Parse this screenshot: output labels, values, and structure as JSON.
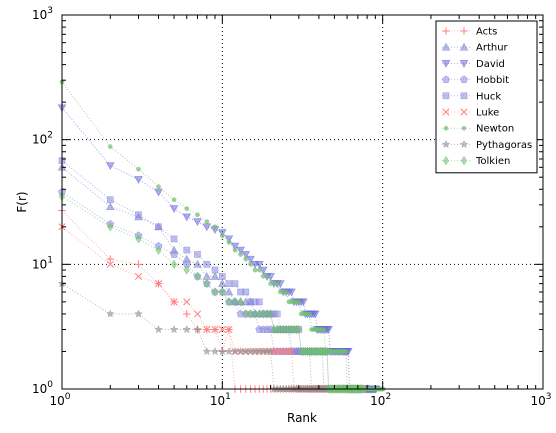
{
  "chart_data": {
    "type": "scatter",
    "xlabel": "Rank",
    "ylabel": "F(r)",
    "xscale": "log",
    "yscale": "log",
    "xlim": [
      1,
      1000
    ],
    "ylim": [
      1,
      1000
    ],
    "grid": true,
    "legend_position": "top-right",
    "x_ticks": [
      {
        "value": 1,
        "base": "10",
        "exp": "0"
      },
      {
        "value": 10,
        "base": "10",
        "exp": "1"
      },
      {
        "value": 100,
        "base": "10",
        "exp": "2"
      },
      {
        "value": 1000,
        "base": "10",
        "exp": "3"
      }
    ],
    "y_ticks": [
      {
        "value": 1,
        "base": "10",
        "exp": "0"
      },
      {
        "value": 10,
        "base": "10",
        "exp": "1"
      },
      {
        "value": 100,
        "base": "10",
        "exp": "2"
      },
      {
        "value": 1000,
        "base": "10",
        "exp": "3"
      }
    ],
    "series": [
      {
        "name": "Acts",
        "color": "#ff8080",
        "marker": "plus",
        "runs": [
          [
            1,
            27
          ],
          [
            2,
            11
          ],
          [
            3,
            10
          ],
          [
            4,
            7
          ],
          [
            5,
            5
          ],
          [
            6,
            4
          ],
          [
            7,
            3
          ],
          [
            8,
            3
          ],
          [
            9,
            3
          ],
          [
            10,
            2
          ],
          [
            1,
            1,
            3
          ],
          [
            1,
            2,
            35,
            1
          ]
        ]
      },
      {
        "name": "Arthur",
        "color": "#7a80c8",
        "marker": "triangle-up",
        "runs": [
          [
            1,
            60
          ],
          [
            2,
            29
          ],
          [
            3,
            24
          ],
          [
            4,
            20
          ],
          [
            5,
            13
          ],
          [
            6,
            11
          ],
          [
            7,
            10
          ],
          [
            8,
            8
          ],
          [
            9,
            8
          ],
          [
            10,
            7
          ],
          [
            11,
            6
          ],
          [
            4,
            5
          ],
          [
            5,
            4
          ],
          [
            6,
            3
          ],
          [
            16,
            2
          ],
          [
            40,
            1
          ]
        ]
      },
      {
        "name": "David",
        "color": "#6a6ad8",
        "marker": "triangle-down",
        "runs": [
          [
            1,
            180
          ],
          [
            2,
            62
          ],
          [
            3,
            48
          ],
          [
            4,
            38
          ],
          [
            5,
            28
          ],
          [
            6,
            24
          ],
          [
            7,
            22
          ],
          [
            8,
            20
          ],
          [
            9,
            19
          ],
          [
            10,
            18
          ],
          [
            11,
            16
          ],
          [
            12,
            14
          ],
          [
            13,
            13
          ],
          [
            14,
            12
          ],
          [
            15,
            11
          ],
          [
            16,
            10
          ],
          [
            17,
            10
          ],
          [
            18,
            9
          ],
          [
            19,
            8
          ],
          [
            20,
            8
          ],
          [
            21,
            7
          ],
          [
            22,
            7
          ],
          [
            23,
            7
          ],
          [
            24,
            6
          ],
          [
            25,
            6
          ],
          [
            26,
            6
          ],
          [
            27,
            6
          ],
          [
            28,
            5
          ],
          [
            29,
            5
          ],
          [
            30,
            5
          ],
          [
            31,
            5
          ],
          [
            32,
            5
          ],
          [
            33,
            4
          ],
          [
            34,
            4
          ],
          [
            35,
            4
          ],
          [
            36,
            4
          ],
          [
            37,
            4
          ],
          [
            38,
            4
          ],
          [
            8,
            3
          ],
          [
            15,
            2
          ],
          [
            30,
            1
          ]
        ]
      },
      {
        "name": "Hobbit",
        "color": "#8a8ae0",
        "marker": "pentagon",
        "runs": [
          [
            1,
            38
          ],
          [
            2,
            21
          ],
          [
            3,
            17
          ],
          [
            4,
            14
          ],
          [
            5,
            12
          ],
          [
            6,
            10
          ],
          [
            7,
            8
          ],
          [
            8,
            7
          ],
          [
            9,
            6
          ],
          [
            10,
            6
          ],
          [
            11,
            5
          ],
          [
            12,
            5
          ],
          [
            13,
            4
          ],
          [
            14,
            4
          ],
          [
            15,
            4
          ],
          [
            16,
            4
          ],
          [
            17,
            3
          ],
          [
            18,
            3
          ],
          [
            19,
            3
          ],
          [
            20,
            3
          ],
          [
            15,
            2
          ],
          [
            30,
            1
          ]
        ]
      },
      {
        "name": "Huck",
        "color": "#8a8ae0",
        "marker": "square",
        "runs": [
          [
            1,
            68
          ],
          [
            2,
            33
          ],
          [
            3,
            25
          ],
          [
            4,
            20
          ],
          [
            5,
            16
          ],
          [
            6,
            13
          ],
          [
            7,
            12
          ],
          [
            8,
            10
          ],
          [
            9,
            9
          ],
          [
            10,
            8
          ],
          [
            11,
            7
          ],
          [
            12,
            7
          ],
          [
            13,
            6
          ],
          [
            14,
            6
          ],
          [
            15,
            5
          ],
          [
            16,
            5
          ],
          [
            17,
            5
          ],
          [
            18,
            4
          ],
          [
            19,
            4
          ],
          [
            20,
            4
          ],
          [
            21,
            4
          ],
          [
            22,
            4
          ],
          [
            23,
            3
          ],
          [
            24,
            3
          ],
          [
            25,
            3
          ],
          [
            26,
            3
          ],
          [
            27,
            3
          ],
          [
            28,
            3
          ],
          [
            29,
            3
          ],
          [
            30,
            3
          ],
          [
            15,
            2
          ],
          [
            30,
            1
          ]
        ]
      },
      {
        "name": "Luke",
        "color": "#ff8080",
        "marker": "x",
        "runs": [
          [
            1,
            20
          ],
          [
            2,
            10
          ],
          [
            3,
            8
          ],
          [
            4,
            7
          ],
          [
            5,
            5
          ],
          [
            6,
            5
          ],
          [
            7,
            4
          ],
          [
            8,
            3
          ],
          [
            3,
            3
          ],
          [
            16,
            2
          ],
          [
            48,
            1
          ]
        ]
      },
      {
        "name": "Newton",
        "color": "#6fbf6f",
        "marker": "dot",
        "runs": [
          [
            1,
            290
          ],
          [
            2,
            88
          ],
          [
            3,
            58
          ],
          [
            4,
            42
          ],
          [
            5,
            33
          ],
          [
            6,
            28
          ],
          [
            7,
            25
          ],
          [
            8,
            22
          ],
          [
            9,
            20
          ],
          [
            10,
            17
          ],
          [
            11,
            15
          ],
          [
            12,
            13
          ],
          [
            13,
            12
          ],
          [
            14,
            11
          ],
          [
            15,
            10
          ],
          [
            16,
            9
          ],
          [
            17,
            9
          ],
          [
            18,
            8
          ],
          [
            19,
            8
          ],
          [
            20,
            7
          ],
          [
            21,
            7
          ],
          [
            22,
            7
          ],
          [
            23,
            6
          ],
          [
            24,
            6
          ],
          [
            25,
            6
          ],
          [
            26,
            5
          ],
          [
            27,
            5
          ],
          [
            28,
            5
          ],
          [
            29,
            5
          ],
          [
            30,
            5
          ],
          [
            31,
            4
          ],
          [
            32,
            4
          ],
          [
            33,
            4
          ],
          [
            34,
            4
          ],
          [
            35,
            4
          ],
          [
            8,
            3
          ],
          [
            16,
            2
          ],
          [
            42,
            1
          ]
        ]
      },
      {
        "name": "Pythagoras",
        "color": "#909090",
        "marker": "star",
        "runs": [
          [
            1,
            7
          ],
          [
            2,
            4
          ],
          [
            3,
            4
          ],
          [
            4,
            3
          ],
          [
            5,
            3
          ],
          [
            6,
            3
          ],
          [
            7,
            3
          ],
          [
            8,
            2
          ],
          [
            9,
            2
          ],
          [
            10,
            2
          ],
          [
            11,
            2
          ],
          [
            12,
            2
          ],
          [
            13,
            2
          ],
          [
            14,
            2
          ],
          [
            15,
            2
          ],
          [
            16,
            2
          ],
          [
            17,
            2
          ],
          [
            18,
            2
          ],
          [
            19,
            2
          ],
          [
            20,
            2
          ],
          [
            45,
            1
          ]
        ]
      },
      {
        "name": "Tolkien",
        "color": "#6fbf6f",
        "marker": "diamond",
        "runs": [
          [
            1,
            35
          ],
          [
            2,
            20
          ],
          [
            3,
            16
          ],
          [
            4,
            13
          ],
          [
            5,
            10
          ],
          [
            6,
            9
          ],
          [
            7,
            8
          ],
          [
            8,
            7
          ],
          [
            9,
            6
          ],
          [
            10,
            6
          ],
          [
            11,
            5
          ],
          [
            12,
            5
          ],
          [
            13,
            5
          ],
          [
            14,
            4
          ],
          [
            15,
            4
          ],
          [
            16,
            4
          ],
          [
            17,
            4
          ],
          [
            18,
            4
          ],
          [
            19,
            4
          ],
          [
            20,
            4
          ],
          [
            21,
            3
          ],
          [
            22,
            3
          ],
          [
            23,
            3
          ],
          [
            24,
            3
          ],
          [
            25,
            3
          ],
          [
            26,
            3
          ],
          [
            27,
            3
          ],
          [
            28,
            3
          ],
          [
            29,
            3
          ],
          [
            30,
            3
          ],
          [
            15,
            2
          ],
          [
            30,
            1
          ]
        ]
      }
    ]
  }
}
